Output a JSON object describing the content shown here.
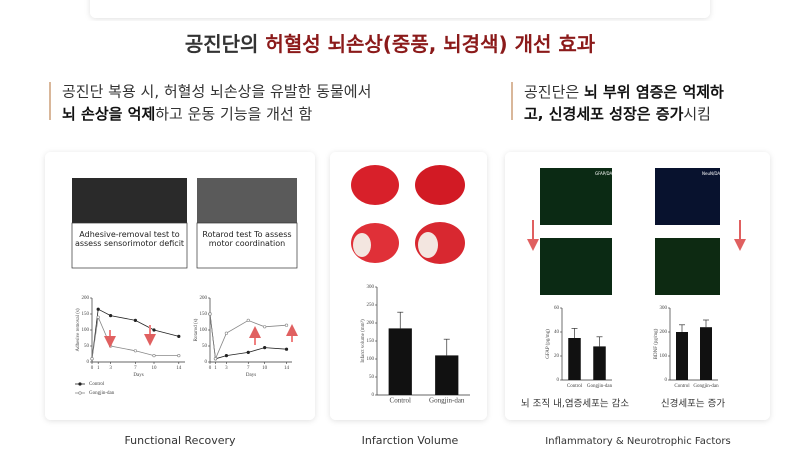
{
  "title": {
    "prefix": "공진단의",
    "highlight": "허혈성 뇌손상(중풍, 뇌경색) 개선 효과"
  },
  "left_heading": {
    "line1": "공진단 복용 시, 허혈성 뇌손상을 유발한 동물에서",
    "line2_bold": "뇌 손상을 억제",
    "line2_rest": "하고 운동 기능을 개선 함"
  },
  "right_heading": {
    "line1_pre": "공진단은",
    "line1_bold": "뇌 부위 염증은 억제하",
    "line2_bold": "고, 신경세포 성장은 증가",
    "line2_rest": "시킴"
  },
  "photo_captions": [
    "Adhesive-removal test to assess sensorimotor deficit",
    "Rotarod test To assess motor coordination"
  ],
  "image_labels": [
    "GFAP/DAPI",
    "NeuN/DAPI"
  ],
  "panel_captions": [
    "뇌 조직 내,염증세포는 감소",
    "신경세포는 증가"
  ],
  "section_titles": [
    "Functional Recovery",
    "Infarction Volume",
    "Inflammatory & Neurotrophic Factors"
  ],
  "charts": {
    "adhesive": {
      "type": "line",
      "ylabel": "Adhesive removal (s)",
      "xlabel": "Days",
      "x": [
        0,
        1,
        3,
        7,
        10,
        14
      ],
      "xlim": [
        0,
        15
      ],
      "xticks": [
        0,
        1,
        3,
        7,
        10,
        14
      ],
      "ylim": [
        0,
        200
      ],
      "yticks": [
        0,
        50,
        100,
        150,
        200
      ],
      "series": [
        {
          "name": "Control",
          "color": "#222",
          "values": [
            10,
            165,
            145,
            130,
            100,
            80
          ]
        },
        {
          "name": "Gongjin-dan",
          "color": "#888",
          "values": [
            10,
            140,
            50,
            35,
            20,
            20
          ]
        }
      ]
    },
    "rotarod": {
      "type": "line",
      "ylabel": "Rotarod (s)",
      "xlabel": "Days",
      "x": [
        0,
        1,
        3,
        7,
        10,
        14
      ],
      "xlim": [
        0,
        15
      ],
      "xticks": [
        0,
        1,
        3,
        7,
        10,
        14
      ],
      "ylim": [
        0,
        200
      ],
      "yticks": [
        0,
        50,
        100,
        150,
        200
      ],
      "series": [
        {
          "name": "Control",
          "color": "#222",
          "values": [
            150,
            10,
            20,
            30,
            45,
            40
          ]
        },
        {
          "name": "Gongjin-dan",
          "color": "#888",
          "values": [
            150,
            10,
            90,
            130,
            110,
            115
          ]
        }
      ]
    },
    "infarct": {
      "type": "bar",
      "ylabel": "Infarct volume (mm³)",
      "categories": [
        "Control",
        "Gongjin-dan"
      ],
      "values": [
        185,
        110
      ],
      "errors": [
        45,
        45
      ],
      "ylim": [
        0,
        300
      ],
      "yticks": [
        0,
        50,
        100,
        150,
        200,
        250,
        300
      ],
      "color": "#111"
    },
    "gfap": {
      "type": "bar",
      "ylabel": "GFAP (pg/mg)",
      "categories": [
        "Control",
        "Gongjin-dan"
      ],
      "values": [
        35,
        28
      ],
      "errors": [
        8,
        8
      ],
      "ylim": [
        0,
        60
      ],
      "yticks": [
        0,
        20,
        40,
        60
      ],
      "color": "#111"
    },
    "bdnf": {
      "type": "bar",
      "ylabel": "BDNF (pg/mg)",
      "categories": [
        "Control",
        "Gongjin-dan"
      ],
      "values": [
        200,
        220
      ],
      "errors": [
        30,
        30
      ],
      "ylim": [
        0,
        300
      ],
      "yticks": [
        0,
        100,
        200,
        300
      ],
      "color": "#111"
    }
  }
}
